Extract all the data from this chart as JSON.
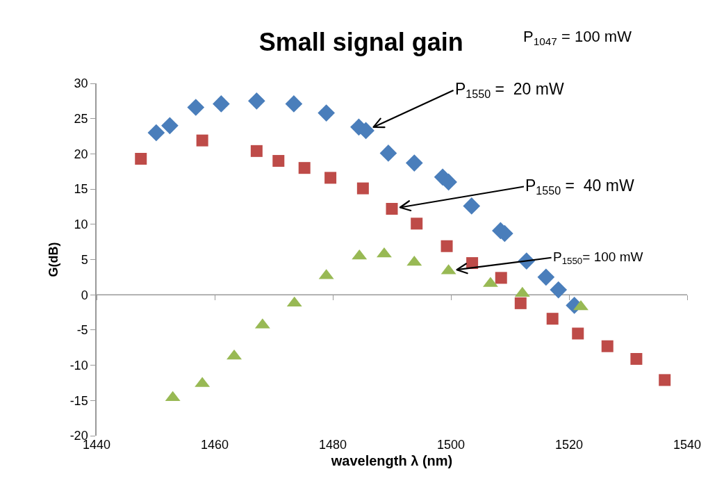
{
  "chart_data": {
    "type": "scatter",
    "title": "Small signal gain",
    "xlabel": "wavelength λ (nm)",
    "ylabel": "G(dB)",
    "xlim": [
      1440,
      1540
    ],
    "xticks": [
      1440,
      1460,
      1480,
      1500,
      1520,
      1540
    ],
    "ylim": [
      -20,
      30
    ],
    "yticks": [
      -20,
      -15,
      -10,
      -5,
      0,
      5,
      10,
      15,
      20,
      25,
      30
    ],
    "grid": false,
    "ref_lines": [
      {
        "axis": "y",
        "value": 0,
        "color": "#999999"
      }
    ],
    "series": [
      {
        "color": "#4a7ebb",
        "marker": "diamond",
        "x": [
          1450.1,
          1452.4,
          1456.8,
          1461.1,
          1467.1,
          1473.4,
          1478.9,
          1484.4,
          1485.6,
          1489.4,
          1493.8,
          1498.6,
          1499.6,
          1503.5,
          1508.4,
          1509.1,
          1512.8,
          1516.1,
          1518.2,
          1520.9
        ],
        "values": [
          23.0,
          24.0,
          26.6,
          27.1,
          27.5,
          27.1,
          25.8,
          23.8,
          23.3,
          20.1,
          18.7,
          16.7,
          16.0,
          12.6,
          9.1,
          8.7,
          4.8,
          2.5,
          0.7,
          -1.5
        ]
      },
      {
        "color": "#be4b48",
        "marker": "square",
        "x": [
          1447.5,
          1457.9,
          1467.1,
          1470.8,
          1475.2,
          1479.6,
          1485.1,
          1490.0,
          1494.2,
          1499.3,
          1503.6,
          1508.5,
          1511.8,
          1517.2,
          1521.5,
          1526.5,
          1531.4,
          1536.2
        ],
        "values": [
          19.3,
          21.9,
          20.4,
          19.0,
          18.0,
          16.6,
          15.1,
          12.2,
          10.1,
          6.9,
          4.5,
          2.4,
          -1.2,
          -3.4,
          -5.5,
          -7.3,
          -9.1,
          -12.1
        ]
      },
      {
        "color": "#98b954",
        "marker": "triangle",
        "x": [
          1452.9,
          1457.9,
          1463.3,
          1468.1,
          1473.5,
          1478.9,
          1484.5,
          1488.7,
          1493.8,
          1499.6,
          1506.7,
          1512.1,
          1522.0
        ],
        "values": [
          -14.6,
          -12.6,
          -8.7,
          -4.3,
          -1.2,
          2.7,
          5.5,
          5.8,
          4.6,
          3.4,
          1.6,
          0.2,
          -1.7
        ]
      }
    ],
    "annotations": [
      "P$_{1047}$ = 100 mW",
      {
        "text": "P$_{1550}$ =  20 mW",
        "x": 1485.6,
        "y": 23.3
      },
      {
        "text": "P$_{1550}$ =  40 mW",
        "x": 1490.0,
        "y": 12.2
      },
      {
        "text": "P$_{1550}$= 100 mW",
        "x": 1499.6,
        "y": 3.4
      }
    ]
  }
}
